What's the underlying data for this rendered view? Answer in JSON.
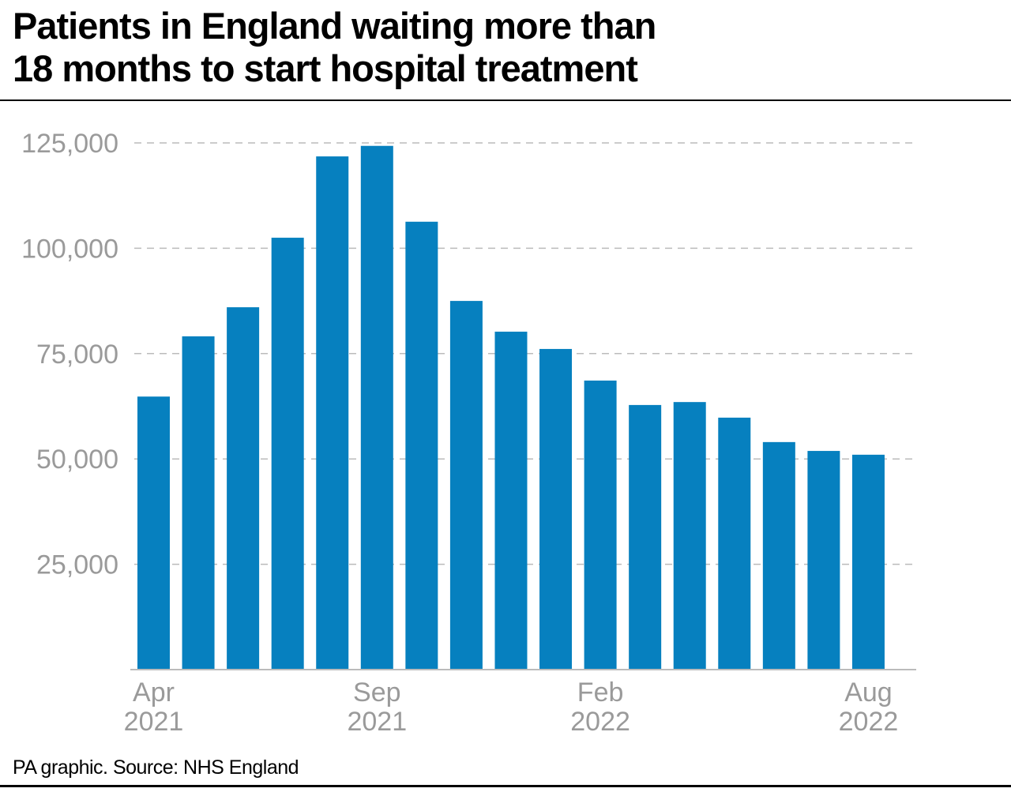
{
  "title_lines": [
    "Patients in England waiting more than",
    "18 months to start hospital treatment"
  ],
  "source": "PA graphic. Source: NHS England",
  "chart_data": {
    "type": "bar",
    "title": "Patients in England waiting more than 18 months to start hospital treatment",
    "categories": [
      "Apr 2021",
      "May 2021",
      "Jun 2021",
      "Jul 2021",
      "Aug 2021",
      "Sep 2021",
      "Oct 2021",
      "Nov 2021",
      "Dec 2021",
      "Jan 2022",
      "Feb 2022",
      "Mar 2022",
      "Apr 2022",
      "May 2022",
      "Jun 2022",
      "Jul 2022",
      "Aug 2022"
    ],
    "values": [
      64800,
      79100,
      86000,
      102500,
      121800,
      124300,
      106300,
      87500,
      80200,
      76100,
      68600,
      62800,
      63500,
      59800,
      54000,
      51900,
      51000
    ],
    "x_tick_labels": [
      {
        "index": 0,
        "month": "Apr",
        "year": "2021"
      },
      {
        "index": 5,
        "month": "Sep",
        "year": "2021"
      },
      {
        "index": 10,
        "month": "Feb",
        "year": "2022"
      },
      {
        "index": 16,
        "month": "Aug",
        "year": "2022"
      }
    ],
    "y_ticks": [
      25000,
      50000,
      75000,
      100000,
      125000
    ],
    "y_tick_labels": [
      "25,000",
      "50,000",
      "75,000",
      "100,000",
      "125,000"
    ],
    "ylim": [
      0,
      125000
    ],
    "xlabel": "",
    "ylabel": "",
    "grid": true,
    "bar_color": "#0680bf",
    "grid_color": "#bbbbbb"
  }
}
